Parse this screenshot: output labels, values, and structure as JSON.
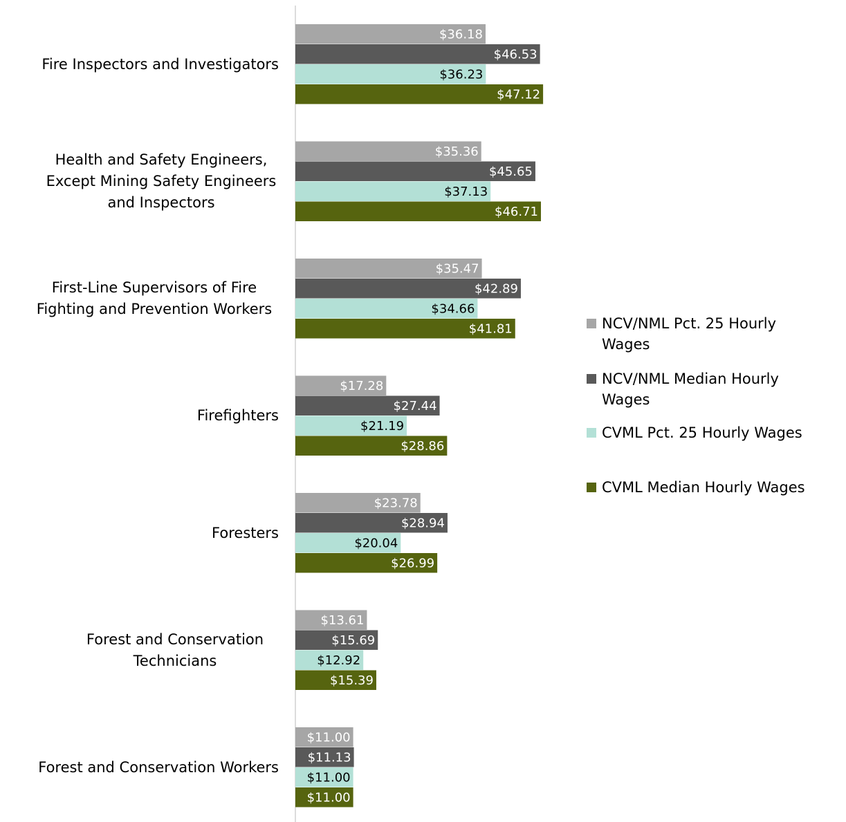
{
  "chart_data": {
    "type": "bar",
    "orientation": "horizontal",
    "categories": [
      "Fire Inspectors and Investigators",
      "Health and Safety Engineers, Except Mining Safety Engineers and Inspectors",
      "First-Line Supervisors of Fire Fighting and Prevention Workers",
      "Firefighters",
      "Foresters",
      "Forest and Conservation Technicians",
      "Forest and Conservation Workers"
    ],
    "series": [
      {
        "name": "NCV/NML Pct. 25 Hourly Wages",
        "color": "#a6a6a6",
        "label_color": "#ffffff",
        "values": [
          36.18,
          35.36,
          35.47,
          17.28,
          23.78,
          13.61,
          11.0
        ],
        "value_labels": [
          "$36.18",
          "$35.36",
          "$35.47",
          "$17.28",
          "$23.78",
          "$13.61",
          "$11.00"
        ]
      },
      {
        "name": "NCV/NML Median Hourly Wages",
        "color": "#595959",
        "label_color": "#ffffff",
        "values": [
          46.53,
          45.65,
          42.89,
          27.44,
          28.94,
          15.69,
          11.13
        ],
        "value_labels": [
          "$46.53",
          "$45.65",
          "$42.89",
          "$27.44",
          "$28.94",
          "$15.69",
          "$11.13"
        ]
      },
      {
        "name": "CVML Pct. 25 Hourly Wages",
        "color": "#b3e0d6",
        "label_color": "#000000",
        "values": [
          36.23,
          37.13,
          34.66,
          21.19,
          20.04,
          12.92,
          11.0
        ],
        "value_labels": [
          "$36.23",
          "$37.13",
          "$34.66",
          "$21.19",
          "$20.04",
          "$12.92",
          "$11.00"
        ]
      },
      {
        "name": "CVML Median Hourly Wages",
        "color": "#56640f",
        "label_color": "#ffffff",
        "values": [
          47.12,
          46.71,
          41.81,
          28.86,
          26.99,
          15.39,
          11.0
        ],
        "value_labels": [
          "$47.12",
          "$46.71",
          "$41.81",
          "$28.86",
          "$26.99",
          "$15.39",
          "$11.00"
        ]
      }
    ],
    "legend": "right"
  }
}
